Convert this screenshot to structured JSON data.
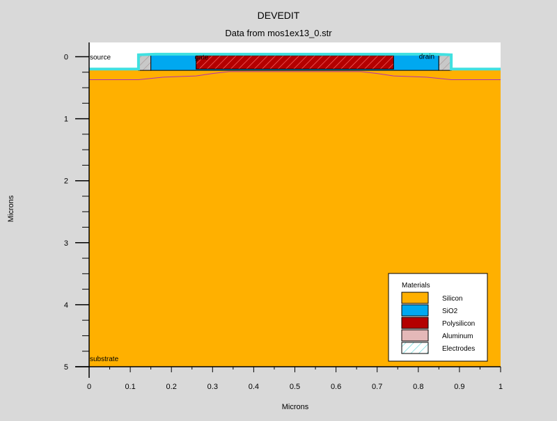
{
  "chart_data": {
    "type": "other",
    "title": "DEVEDIT",
    "subtitle": "Data from mos1ex13_0.str",
    "xlabel": "Microns",
    "ylabel": "Microns",
    "xlim": [
      0,
      1
    ],
    "ylim": [
      5,
      -0.23
    ],
    "y_axis_inverted": true,
    "x_ticks": [
      "0",
      "0.1",
      "0.2",
      "0.3",
      "0.4",
      "0.5",
      "0.6",
      "0.7",
      "0.8",
      "0.9",
      "1"
    ],
    "y_ticks": [
      "0",
      "1",
      "2",
      "3",
      "4",
      "5"
    ],
    "region_labels": [
      {
        "text": "source",
        "x": 0.0,
        "y": 0.11
      },
      {
        "text": "gate",
        "x": 0.255,
        "y": 0.11
      },
      {
        "text": "drain",
        "x": 0.8,
        "y": 0.1
      },
      {
        "text": "substrate",
        "x": 0.0,
        "y": 4.98
      }
    ],
    "legend": {
      "title": "Materials",
      "position": "bottom-right",
      "items": [
        {
          "name": "Silicon",
          "color": "#ffb000"
        },
        {
          "name": "SiO2",
          "color": "#00a8f0"
        },
        {
          "name": "Polysilicon",
          "color": "#b40000"
        },
        {
          "name": "Aluminum",
          "color": "#e4b8b8"
        },
        {
          "name": "Electrodes",
          "color": "#66d8d8"
        }
      ]
    },
    "regions": [
      {
        "material": "Silicon",
        "color": "#ffb000",
        "points": [
          [
            0,
            5
          ],
          [
            1,
            5
          ],
          [
            1,
            0.2
          ],
          [
            0.87,
            0.2
          ],
          [
            0.85,
            0.22
          ],
          [
            0.15,
            0.22
          ],
          [
            0.13,
            0.2
          ],
          [
            0,
            0.2
          ]
        ]
      },
      {
        "material": "SiO2",
        "color": "#00a8f0",
        "points": [
          [
            0.15,
            0.22
          ],
          [
            0.15,
            -0.03
          ],
          [
            0.16,
            -0.04
          ],
          [
            0.26,
            -0.045
          ],
          [
            0.74,
            -0.045
          ],
          [
            0.84,
            -0.04
          ],
          [
            0.85,
            -0.03
          ],
          [
            0.85,
            0.22
          ]
        ]
      },
      {
        "material": "Polysilicon",
        "color": "#b40000",
        "points": [
          [
            0.26,
            0.2
          ],
          [
            0.26,
            -0.02
          ],
          [
            0.74,
            -0.02
          ],
          [
            0.74,
            0.2
          ]
        ]
      },
      {
        "material": "Aluminum",
        "color": "#c8b8b8",
        "points": [
          [
            0.12,
            0.22
          ],
          [
            0.12,
            -0.03
          ],
          [
            0.15,
            -0.03
          ],
          [
            0.15,
            0.22
          ]
        ]
      },
      {
        "material": "Aluminum",
        "color": "#c8b8b8",
        "points": [
          [
            0.85,
            0.22
          ],
          [
            0.85,
            -0.03
          ],
          [
            0.88,
            -0.03
          ],
          [
            0.88,
            0.22
          ]
        ]
      }
    ],
    "outlines": [
      {
        "material": "Electrodes",
        "color": "#40e0e0",
        "points": [
          [
            0,
            0.2
          ],
          [
            0.12,
            0.2
          ],
          [
            0.12,
            -0.03
          ],
          [
            0.16,
            -0.04
          ],
          [
            0.84,
            -0.04
          ],
          [
            0.88,
            -0.03
          ],
          [
            0.88,
            0.2
          ],
          [
            1,
            0.2
          ]
        ]
      }
    ],
    "junction_line": {
      "color": "#b030b0",
      "points": [
        [
          0,
          0.37
        ],
        [
          0.12,
          0.37
        ],
        [
          0.18,
          0.33
        ],
        [
          0.26,
          0.31
        ],
        [
          0.3,
          0.27
        ],
        [
          0.34,
          0.24
        ],
        [
          0.66,
          0.24
        ],
        [
          0.7,
          0.27
        ],
        [
          0.74,
          0.31
        ],
        [
          0.82,
          0.33
        ],
        [
          0.88,
          0.37
        ],
        [
          1,
          0.37
        ]
      ]
    }
  }
}
